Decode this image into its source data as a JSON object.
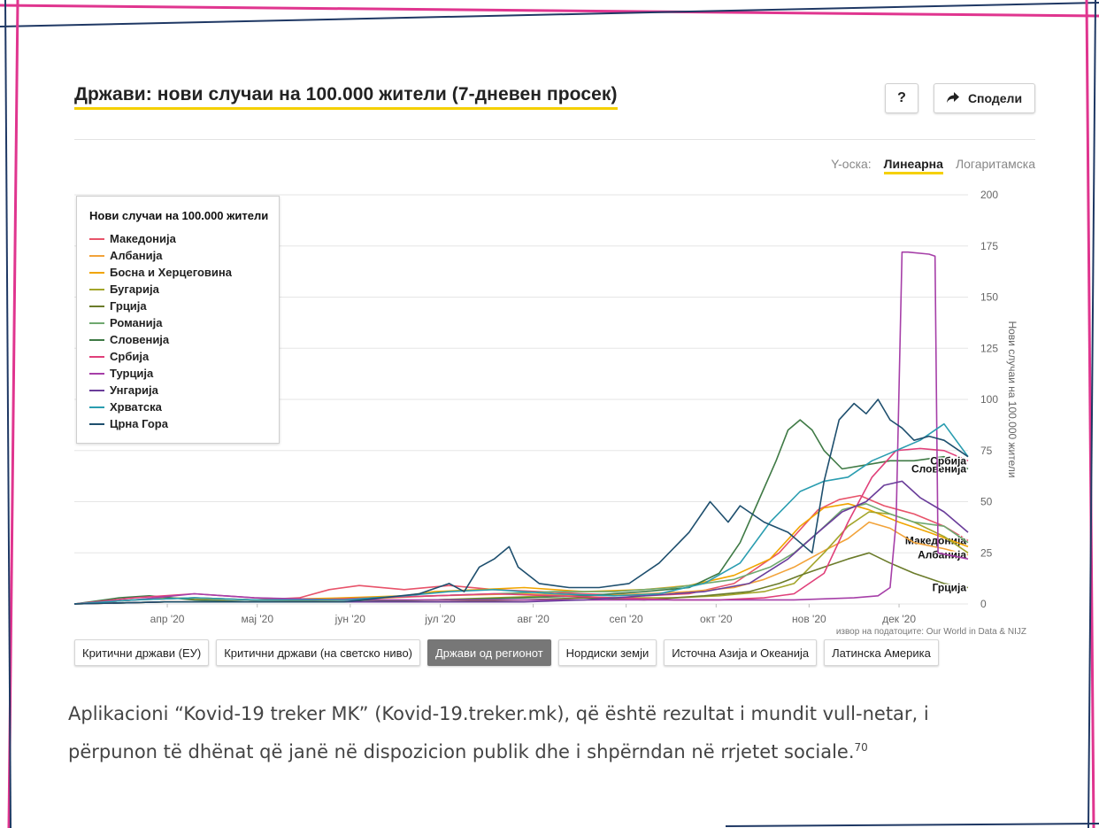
{
  "header": {
    "title": "Држави: нови случаи на 100.000 жители (7-дневен просек)",
    "help_label": "?",
    "share_label": "Сподели"
  },
  "scale_toggle": {
    "label": "Y-оска:",
    "linear": "Линеарна",
    "log": "Логаритамска",
    "selected": "Линеарна"
  },
  "legend": {
    "title": "Нови случаи на 100.000 жители"
  },
  "source": "извор на податоците: Our World in Data & NIJZ",
  "tabs": [
    {
      "label": "Критични држави (ЕУ)",
      "active": false
    },
    {
      "label": "Критични држави (на светско ниво)",
      "active": false
    },
    {
      "label": "Држави од регионот",
      "active": true
    },
    {
      "label": "Нордиски земји",
      "active": false
    },
    {
      "label": "Источна Азија и Океанија",
      "active": false
    },
    {
      "label": "Латинска Америка",
      "active": false
    }
  ],
  "paragraph": {
    "text": "Aplikacioni “Kovid-19 treker MK” (Kovid-19.treker.mk),  që është rezultat i mundit vull-netar, i përpunon të dhënat që janë në dispozicion publik dhe i shpërndan në rrjetet sociale.",
    "footnote": "70"
  },
  "colors": {
    "title_underline": "#f5d000",
    "frame_pink": "#e0358f",
    "frame_navy": "#1f3864"
  },
  "chart_data": {
    "type": "line",
    "ylabel": "Нови случаи на 100.000 жители",
    "ylim": [
      0,
      200
    ],
    "y_ticks": [
      0,
      25,
      50,
      75,
      100,
      125,
      150,
      175,
      200
    ],
    "x_ticks": [
      "апр '20",
      "мај '20",
      "јун '20",
      "јул '20",
      "авг '20",
      "сеп '20",
      "окт '20",
      "нов '20",
      "дек '20"
    ],
    "x_tick_days": [
      31,
      61,
      92,
      122,
      153,
      184,
      214,
      245,
      275
    ],
    "x_range": [
      0,
      298
    ],
    "grid": true,
    "legend_position": "top-left",
    "series": [
      {
        "name": "Македонија",
        "color": "#e8536a",
        "end_label": "Македонија",
        "points": [
          [
            0,
            0
          ],
          [
            20,
            2
          ],
          [
            40,
            3
          ],
          [
            60,
            2
          ],
          [
            75,
            3
          ],
          [
            85,
            7
          ],
          [
            95,
            9
          ],
          [
            110,
            7
          ],
          [
            125,
            9
          ],
          [
            140,
            7
          ],
          [
            155,
            6
          ],
          [
            170,
            5
          ],
          [
            190,
            4
          ],
          [
            205,
            5
          ],
          [
            220,
            10
          ],
          [
            235,
            25
          ],
          [
            248,
            46
          ],
          [
            255,
            51
          ],
          [
            262,
            53
          ],
          [
            270,
            48
          ],
          [
            280,
            44
          ],
          [
            290,
            38
          ],
          [
            298,
            31
          ]
        ]
      },
      {
        "name": "Албанија",
        "color": "#f2a33a",
        "end_label": "Албанија",
        "points": [
          [
            0,
            0
          ],
          [
            30,
            1
          ],
          [
            60,
            1
          ],
          [
            90,
            2
          ],
          [
            120,
            4
          ],
          [
            150,
            5
          ],
          [
            170,
            4
          ],
          [
            190,
            5
          ],
          [
            205,
            6
          ],
          [
            220,
            8
          ],
          [
            230,
            12
          ],
          [
            240,
            18
          ],
          [
            250,
            26
          ],
          [
            258,
            32
          ],
          [
            265,
            40
          ],
          [
            272,
            37
          ],
          [
            280,
            30
          ],
          [
            290,
            27
          ],
          [
            298,
            24
          ]
        ]
      },
      {
        "name": "Босна и Херцеговина",
        "color": "#f0a500",
        "points": [
          [
            0,
            0
          ],
          [
            30,
            3
          ],
          [
            60,
            2
          ],
          [
            90,
            3
          ],
          [
            110,
            4
          ],
          [
            120,
            6
          ],
          [
            135,
            7
          ],
          [
            150,
            8
          ],
          [
            170,
            6
          ],
          [
            190,
            7
          ],
          [
            205,
            9
          ],
          [
            220,
            14
          ],
          [
            232,
            22
          ],
          [
            242,
            38
          ],
          [
            250,
            47
          ],
          [
            258,
            49
          ],
          [
            265,
            46
          ],
          [
            275,
            40
          ],
          [
            285,
            35
          ],
          [
            298,
            28
          ]
        ]
      },
      {
        "name": "Бугарија",
        "color": "#a3a52a",
        "points": [
          [
            0,
            0
          ],
          [
            30,
            1
          ],
          [
            60,
            1
          ],
          [
            90,
            1
          ],
          [
            120,
            2
          ],
          [
            140,
            3
          ],
          [
            160,
            4
          ],
          [
            180,
            3
          ],
          [
            200,
            3
          ],
          [
            215,
            4
          ],
          [
            230,
            6
          ],
          [
            240,
            10
          ],
          [
            250,
            25
          ],
          [
            258,
            38
          ],
          [
            265,
            45
          ],
          [
            272,
            44
          ],
          [
            280,
            40
          ],
          [
            290,
            33
          ],
          [
            298,
            25
          ]
        ]
      },
      {
        "name": "Грција",
        "color": "#6b7b2a",
        "end_label": "Грција",
        "points": [
          [
            0,
            0
          ],
          [
            30,
            1
          ],
          [
            60,
            1
          ],
          [
            90,
            1
          ],
          [
            120,
            1
          ],
          [
            150,
            2
          ],
          [
            170,
            3
          ],
          [
            190,
            2
          ],
          [
            210,
            4
          ],
          [
            225,
            6
          ],
          [
            235,
            10
          ],
          [
            242,
            14
          ],
          [
            250,
            18
          ],
          [
            258,
            22
          ],
          [
            265,
            25
          ],
          [
            272,
            20
          ],
          [
            280,
            15
          ],
          [
            290,
            10
          ],
          [
            298,
            8
          ]
        ]
      },
      {
        "name": "Романија",
        "color": "#6fa86f",
        "points": [
          [
            0,
            0
          ],
          [
            20,
            2
          ],
          [
            40,
            3
          ],
          [
            60,
            2
          ],
          [
            80,
            2
          ],
          [
            100,
            3
          ],
          [
            120,
            4
          ],
          [
            140,
            5
          ],
          [
            160,
            6
          ],
          [
            180,
            6
          ],
          [
            200,
            8
          ],
          [
            220,
            12
          ],
          [
            232,
            18
          ],
          [
            240,
            25
          ],
          [
            248,
            35
          ],
          [
            256,
            46
          ],
          [
            264,
            49
          ],
          [
            272,
            44
          ],
          [
            280,
            40
          ],
          [
            290,
            38
          ],
          [
            298,
            30
          ]
        ]
      },
      {
        "name": "Словенија",
        "color": "#3f7a45",
        "end_label": "Словенија",
        "points": [
          [
            0,
            0
          ],
          [
            15,
            3
          ],
          [
            25,
            4
          ],
          [
            40,
            2
          ],
          [
            60,
            1
          ],
          [
            90,
            1
          ],
          [
            120,
            2
          ],
          [
            150,
            3
          ],
          [
            170,
            4
          ],
          [
            190,
            6
          ],
          [
            205,
            8
          ],
          [
            215,
            15
          ],
          [
            222,
            30
          ],
          [
            228,
            50
          ],
          [
            234,
            70
          ],
          [
            238,
            85
          ],
          [
            242,
            90
          ],
          [
            246,
            85
          ],
          [
            250,
            75
          ],
          [
            256,
            66
          ],
          [
            264,
            68
          ],
          [
            272,
            70
          ],
          [
            280,
            70
          ],
          [
            290,
            72
          ],
          [
            298,
            66
          ]
        ]
      },
      {
        "name": "Србија",
        "color": "#e0407a",
        "end_label": "Србија",
        "points": [
          [
            0,
            0
          ],
          [
            20,
            3
          ],
          [
            40,
            5
          ],
          [
            60,
            3
          ],
          [
            80,
            2
          ],
          [
            100,
            3
          ],
          [
            120,
            4
          ],
          [
            140,
            5
          ],
          [
            160,
            4
          ],
          [
            180,
            3
          ],
          [
            200,
            2
          ],
          [
            215,
            2
          ],
          [
            230,
            3
          ],
          [
            240,
            5
          ],
          [
            250,
            15
          ],
          [
            258,
            40
          ],
          [
            266,
            62
          ],
          [
            274,
            75
          ],
          [
            282,
            76
          ],
          [
            290,
            75
          ],
          [
            298,
            70
          ]
        ]
      },
      {
        "name": "Турција",
        "color": "#a63fa8",
        "points": [
          [
            0,
            0
          ],
          [
            20,
            2
          ],
          [
            40,
            5
          ],
          [
            60,
            3
          ],
          [
            90,
            2
          ],
          [
            120,
            2
          ],
          [
            150,
            2
          ],
          [
            180,
            2
          ],
          [
            210,
            2
          ],
          [
            240,
            2
          ],
          [
            260,
            3
          ],
          [
            268,
            4
          ],
          [
            272,
            8
          ],
          [
            274,
            40
          ],
          [
            276,
            172
          ],
          [
            278,
            172
          ],
          [
            285,
            171
          ],
          [
            287,
            170
          ],
          [
            288,
            25
          ],
          [
            298,
            22
          ]
        ]
      },
      {
        "name": "Унгарија",
        "color": "#6a3d9a",
        "points": [
          [
            0,
            0
          ],
          [
            30,
            1
          ],
          [
            60,
            1
          ],
          [
            90,
            1
          ],
          [
            120,
            1
          ],
          [
            150,
            1
          ],
          [
            170,
            2
          ],
          [
            190,
            4
          ],
          [
            210,
            6
          ],
          [
            225,
            10
          ],
          [
            238,
            22
          ],
          [
            248,
            35
          ],
          [
            256,
            45
          ],
          [
            264,
            50
          ],
          [
            270,
            58
          ],
          [
            276,
            60
          ],
          [
            282,
            52
          ],
          [
            290,
            45
          ],
          [
            298,
            35
          ]
        ]
      },
      {
        "name": "Хрватска",
        "color": "#2a9db0",
        "points": [
          [
            0,
            0
          ],
          [
            20,
            2
          ],
          [
            40,
            3
          ],
          [
            60,
            2
          ],
          [
            90,
            2
          ],
          [
            110,
            4
          ],
          [
            125,
            6
          ],
          [
            140,
            7
          ],
          [
            160,
            5
          ],
          [
            180,
            4
          ],
          [
            195,
            5
          ],
          [
            210,
            10
          ],
          [
            222,
            20
          ],
          [
            232,
            40
          ],
          [
            242,
            55
          ],
          [
            250,
            60
          ],
          [
            258,
            62
          ],
          [
            266,
            70
          ],
          [
            274,
            75
          ],
          [
            282,
            80
          ],
          [
            290,
            88
          ],
          [
            298,
            72
          ]
        ]
      },
      {
        "name": "Црна Гора",
        "color": "#1e4f6e",
        "points": [
          [
            0,
            0
          ],
          [
            30,
            1
          ],
          [
            60,
            1
          ],
          [
            90,
            1
          ],
          [
            115,
            5
          ],
          [
            125,
            10
          ],
          [
            130,
            6
          ],
          [
            135,
            18
          ],
          [
            140,
            22
          ],
          [
            145,
            28
          ],
          [
            148,
            18
          ],
          [
            155,
            10
          ],
          [
            165,
            8
          ],
          [
            175,
            8
          ],
          [
            185,
            10
          ],
          [
            195,
            20
          ],
          [
            205,
            35
          ],
          [
            212,
            50
          ],
          [
            218,
            40
          ],
          [
            222,
            48
          ],
          [
            230,
            40
          ],
          [
            238,
            35
          ],
          [
            242,
            30
          ],
          [
            246,
            25
          ],
          [
            250,
            60
          ],
          [
            255,
            90
          ],
          [
            260,
            98
          ],
          [
            264,
            93
          ],
          [
            268,
            100
          ],
          [
            272,
            90
          ],
          [
            276,
            86
          ],
          [
            280,
            80
          ],
          [
            285,
            82
          ],
          [
            290,
            80
          ],
          [
            298,
            72
          ]
        ]
      }
    ]
  }
}
